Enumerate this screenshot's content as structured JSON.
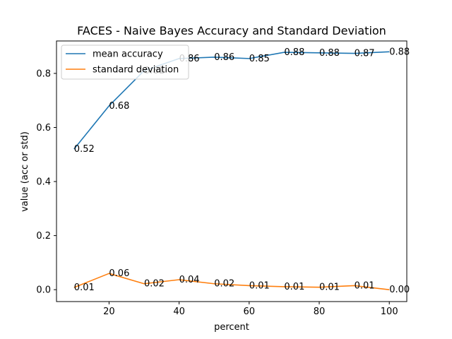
{
  "chart_data": {
    "type": "line",
    "title": "FACES - Naive Bayes Accuracy and Standard Deviation",
    "xlabel": "percent",
    "ylabel": "value (acc or std)",
    "x": [
      10,
      20,
      30,
      40,
      50,
      60,
      70,
      80,
      90,
      100
    ],
    "xlim": [
      5,
      105
    ],
    "ylim": [
      -0.044,
      0.92
    ],
    "xticks": [
      20,
      40,
      60,
      80,
      100
    ],
    "yticks": [
      0.0,
      0.2,
      0.4,
      0.6,
      0.8
    ],
    "xtick_labels": [
      "20",
      "40",
      "60",
      "80",
      "100"
    ],
    "ytick_labels": [
      "0.0",
      "0.2",
      "0.4",
      "0.6",
      "0.8"
    ],
    "grid": false,
    "legend_position": "top-left",
    "series": [
      {
        "name": "mean accuracy",
        "color": "#1f77b4",
        "values": [
          0.52,
          0.68,
          0.81,
          0.855,
          0.86,
          0.855,
          0.878,
          0.876,
          0.874,
          0.88
        ],
        "labels": [
          "0.52",
          "0.68",
          "0.81",
          "0.86",
          "0.86",
          "0.85",
          "0.88",
          "0.88",
          "0.87",
          "0.88"
        ]
      },
      {
        "name": "standard deviation",
        "color": "#ff7f0e",
        "values": [
          0.008,
          0.06,
          0.022,
          0.037,
          0.022,
          0.015,
          0.011,
          0.009,
          0.015,
          0.0
        ],
        "labels": [
          "0.01",
          "0.06",
          "0.02",
          "0.04",
          "0.02",
          "0.01",
          "0.01",
          "0.01",
          "0.01",
          "0.00"
        ]
      }
    ]
  }
}
